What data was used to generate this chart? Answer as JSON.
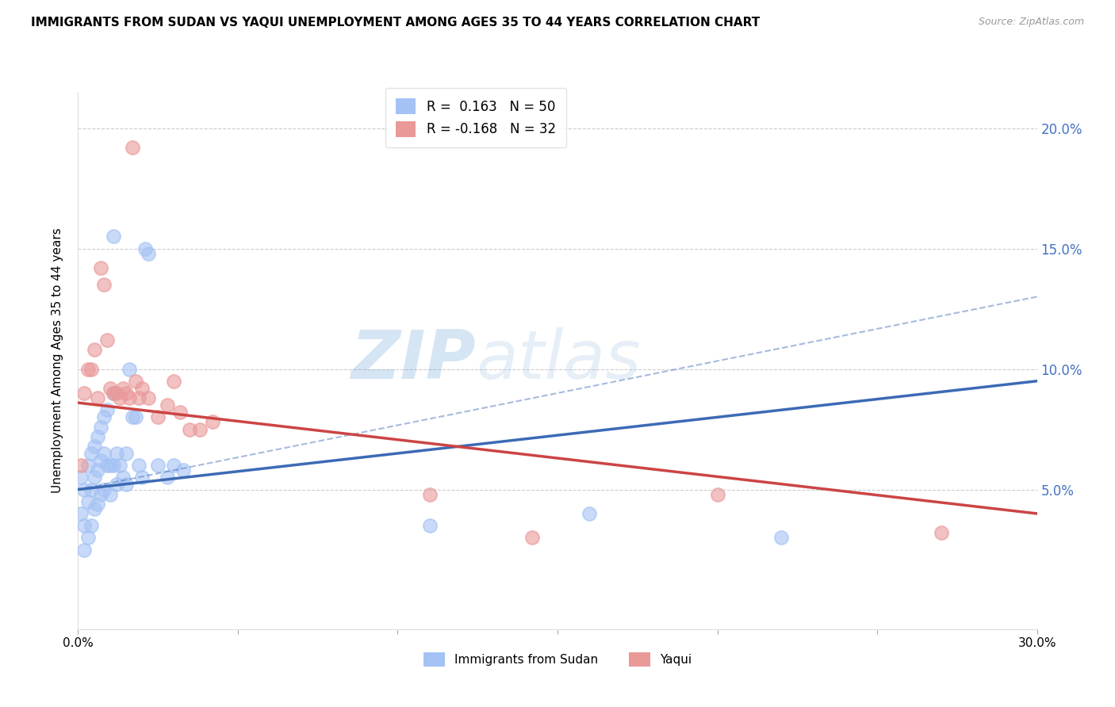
{
  "title": "IMMIGRANTS FROM SUDAN VS YAQUI UNEMPLOYMENT AMONG AGES 35 TO 44 YEARS CORRELATION CHART",
  "source": "Source: ZipAtlas.com",
  "ylabel": "Unemployment Among Ages 35 to 44 years",
  "xlim": [
    0.0,
    0.3
  ],
  "ylim": [
    -0.008,
    0.215
  ],
  "xticks": [
    0.0,
    0.05,
    0.1,
    0.15,
    0.2,
    0.25,
    0.3
  ],
  "yticks": [
    0.0,
    0.05,
    0.1,
    0.15,
    0.2
  ],
  "legend_blue_r": " 0.163",
  "legend_blue_n": "50",
  "legend_pink_r": "-0.168",
  "legend_pink_n": "32",
  "blue_color": "#a4c2f4",
  "pink_color": "#ea9999",
  "trend_blue_color": "#3c6ab5",
  "trend_pink_color": "#cc4444",
  "blue_scatter_x": [
    0.001,
    0.001,
    0.002,
    0.002,
    0.002,
    0.003,
    0.003,
    0.003,
    0.004,
    0.004,
    0.004,
    0.005,
    0.005,
    0.005,
    0.006,
    0.006,
    0.006,
    0.007,
    0.007,
    0.007,
    0.008,
    0.008,
    0.008,
    0.009,
    0.009,
    0.01,
    0.01,
    0.011,
    0.011,
    0.012,
    0.012,
    0.013,
    0.014,
    0.015,
    0.015,
    0.016,
    0.017,
    0.018,
    0.019,
    0.02,
    0.021,
    0.022,
    0.025,
    0.028,
    0.03,
    0.033,
    0.011,
    0.11,
    0.16,
    0.22
  ],
  "blue_scatter_y": [
    0.055,
    0.04,
    0.05,
    0.035,
    0.025,
    0.06,
    0.045,
    0.03,
    0.065,
    0.05,
    0.035,
    0.068,
    0.055,
    0.042,
    0.072,
    0.058,
    0.044,
    0.076,
    0.062,
    0.048,
    0.08,
    0.065,
    0.05,
    0.083,
    0.06,
    0.06,
    0.048,
    0.155,
    0.06,
    0.065,
    0.052,
    0.06,
    0.055,
    0.065,
    0.052,
    0.1,
    0.08,
    0.08,
    0.06,
    0.055,
    0.15,
    0.148,
    0.06,
    0.055,
    0.06,
    0.058,
    0.09,
    0.035,
    0.04,
    0.03
  ],
  "pink_scatter_x": [
    0.001,
    0.002,
    0.003,
    0.004,
    0.005,
    0.006,
    0.007,
    0.008,
    0.009,
    0.01,
    0.011,
    0.012,
    0.013,
    0.014,
    0.015,
    0.016,
    0.017,
    0.018,
    0.019,
    0.02,
    0.022,
    0.025,
    0.028,
    0.03,
    0.032,
    0.035,
    0.038,
    0.042,
    0.11,
    0.142,
    0.2,
    0.27
  ],
  "pink_scatter_y": [
    0.06,
    0.09,
    0.1,
    0.1,
    0.108,
    0.088,
    0.142,
    0.135,
    0.112,
    0.092,
    0.09,
    0.09,
    0.088,
    0.092,
    0.09,
    0.088,
    0.192,
    0.095,
    0.088,
    0.092,
    0.088,
    0.08,
    0.085,
    0.095,
    0.082,
    0.075,
    0.075,
    0.078,
    0.048,
    0.03,
    0.048,
    0.032
  ],
  "trend_blue_x0": 0.0,
  "trend_blue_y0": 0.05,
  "trend_blue_x1": 0.3,
  "trend_blue_y1": 0.095,
  "trend_blue_dash_x0": 0.165,
  "trend_blue_dash_y0": 0.095,
  "trend_blue_dash_x1": 0.3,
  "trend_blue_dash_y1": 0.13,
  "trend_pink_x0": 0.0,
  "trend_pink_y0": 0.086,
  "trend_pink_x1": 0.3,
  "trend_pink_y1": 0.04
}
